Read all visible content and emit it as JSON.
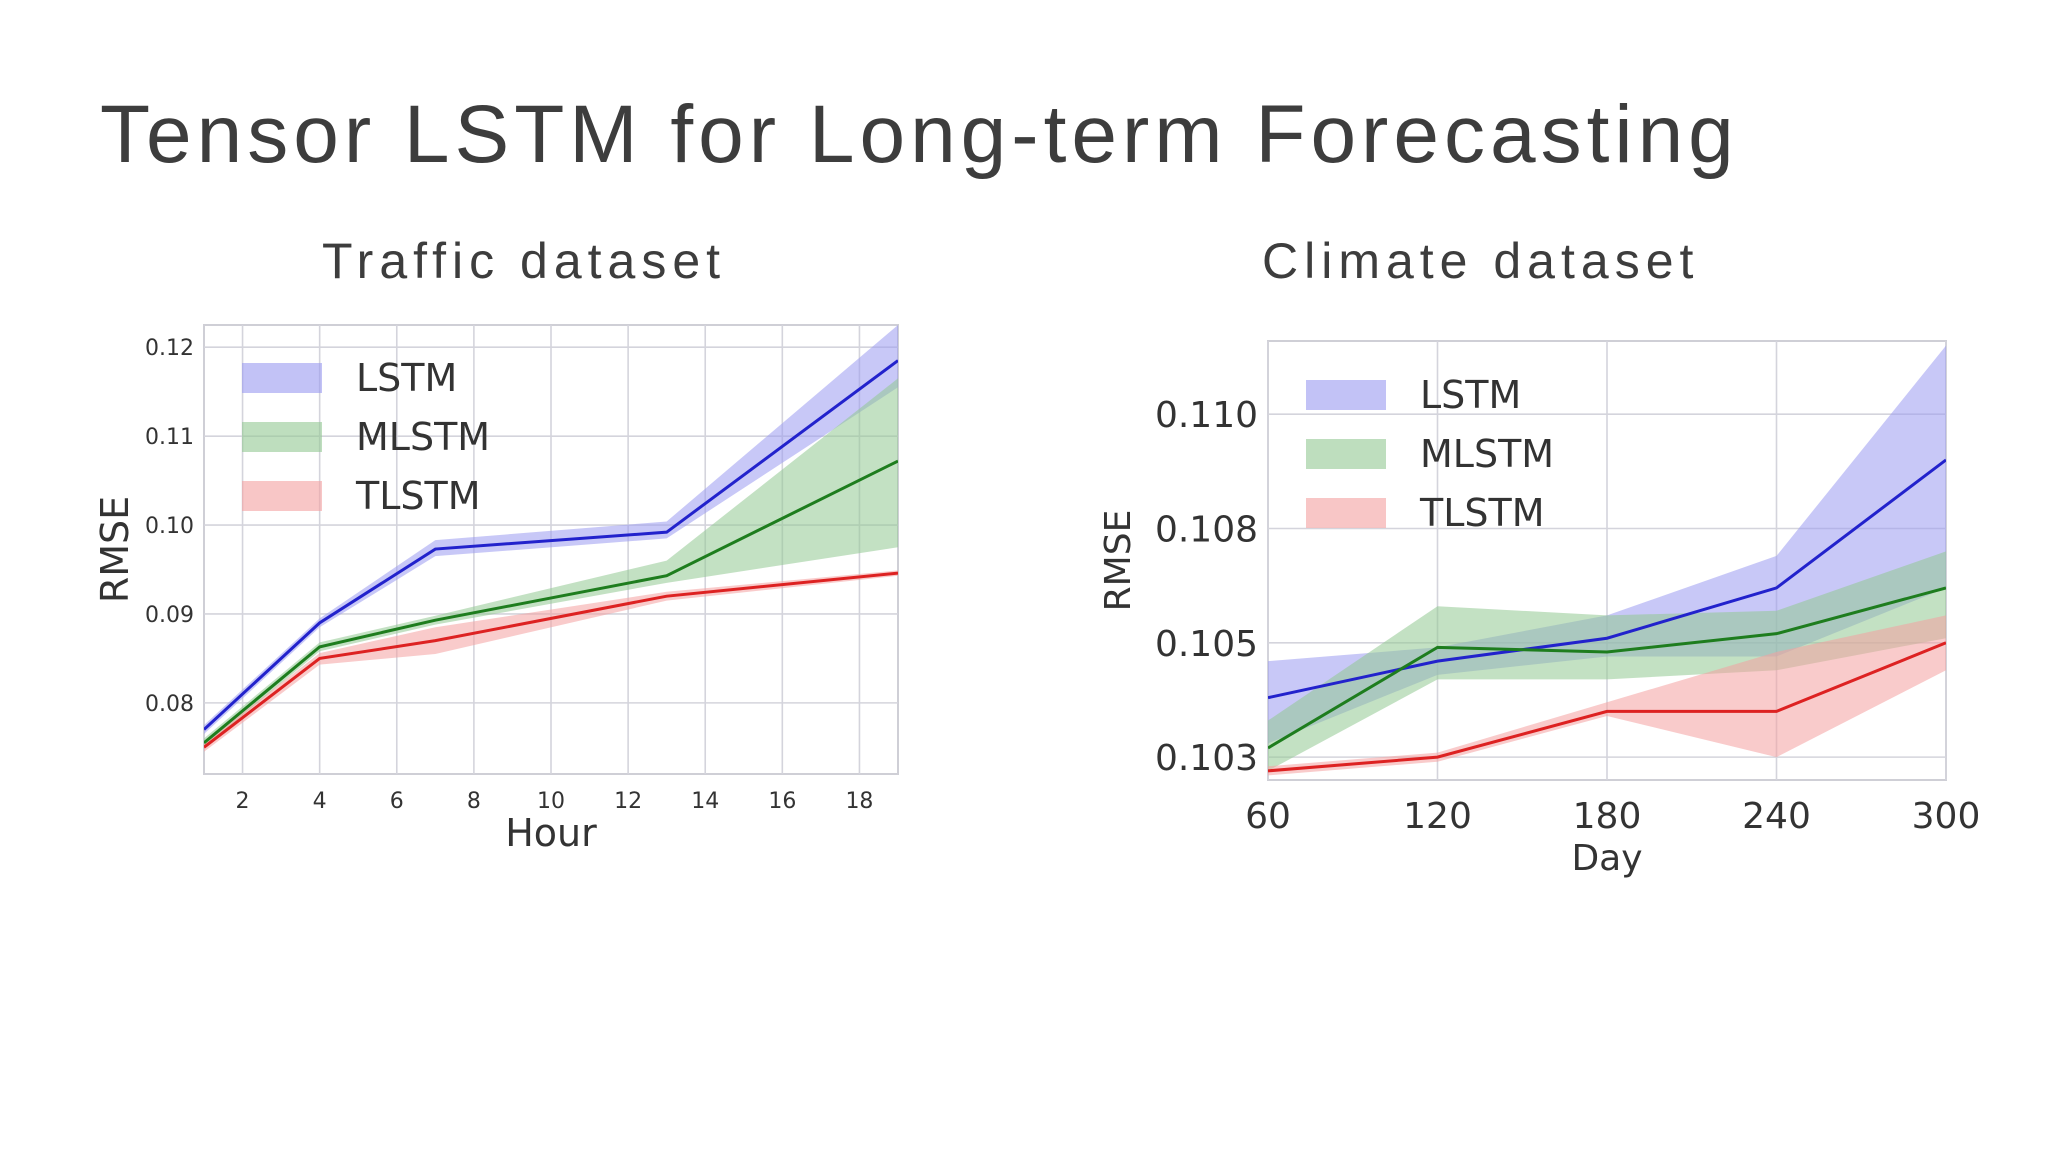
{
  "slide": {
    "title": "Tensor LSTM for Long-term Forecasting"
  },
  "chart_data": [
    {
      "type": "line",
      "title": "Traffic dataset",
      "xlabel": "Hour",
      "ylabel": "RMSE",
      "xlim": [
        1,
        19
      ],
      "ylim": [
        0.072,
        0.1225
      ],
      "xticks": [
        2,
        4,
        6,
        8,
        10,
        12,
        14,
        16,
        18
      ],
      "xtick_labels": [
        "2",
        "4",
        "6",
        "8",
        "10",
        "12",
        "14",
        "16",
        "18"
      ],
      "yticks": [
        0.08,
        0.09,
        0.1,
        0.11,
        0.12
      ],
      "ytick_labels": [
        "0.08",
        "0.09",
        "0.10",
        "0.11",
        "0.12"
      ],
      "grid": true,
      "legend": "top-left",
      "series": [
        {
          "name": "LSTM",
          "color": "#2222cc",
          "band_color": "#9a9af0",
          "x": [
            1,
            4,
            7,
            13,
            19
          ],
          "y": [
            0.077,
            0.089,
            0.0973,
            0.0992,
            0.1185
          ],
          "lower": [
            0.0765,
            0.0885,
            0.0965,
            0.0985,
            0.1155
          ],
          "upper": [
            0.0775,
            0.0895,
            0.0983,
            0.1004,
            0.1225
          ]
        },
        {
          "name": "MLSTM",
          "color": "#1e7d1e",
          "band_color": "#92c892",
          "x": [
            1,
            4,
            7,
            13,
            19
          ],
          "y": [
            0.0755,
            0.0863,
            0.0893,
            0.0943,
            0.1072
          ],
          "lower": [
            0.075,
            0.0858,
            0.0888,
            0.0935,
            0.0975
          ],
          "upper": [
            0.076,
            0.0868,
            0.0898,
            0.096,
            0.1165
          ]
        },
        {
          "name": "TLSTM",
          "color": "#dd2222",
          "band_color": "#f4a0a0",
          "x": [
            1,
            4,
            7,
            13,
            19
          ],
          "y": [
            0.075,
            0.085,
            0.087,
            0.092,
            0.0946
          ],
          "lower": [
            0.0745,
            0.0843,
            0.0855,
            0.0915,
            0.0943
          ],
          "upper": [
            0.0755,
            0.0856,
            0.0885,
            0.0925,
            0.0949
          ]
        }
      ]
    },
    {
      "type": "line",
      "title": "Climate dataset",
      "xlabel": "Day",
      "ylabel": "RMSE",
      "xlim": [
        60,
        300
      ],
      "ylim": [
        0.102,
        0.1116
      ],
      "xticks": [
        60,
        120,
        180,
        240,
        300
      ],
      "xtick_labels": [
        "60",
        "120",
        "180",
        "240",
        "300"
      ],
      "yticks": [
        0.1025,
        0.105,
        0.1075,
        0.11
      ],
      "ytick_labels": [
        "0.103",
        "0.105",
        "0.108",
        "0.110"
      ],
      "grid": true,
      "legend": "top-left",
      "series": [
        {
          "name": "LSTM",
          "color": "#2222cc",
          "band_color": "#9a9af0",
          "x": [
            60,
            120,
            180,
            240,
            300
          ],
          "y": [
            0.1038,
            0.1046,
            0.1051,
            0.1062,
            0.109
          ],
          "lower": [
            0.1028,
            0.1043,
            0.1047,
            0.1047,
            0.1062
          ],
          "upper": [
            0.1046,
            0.1049,
            0.1056,
            0.1069,
            0.1115
          ]
        },
        {
          "name": "MLSTM",
          "color": "#1e7d1e",
          "band_color": "#92c892",
          "x": [
            60,
            120,
            180,
            240,
            300
          ],
          "y": [
            0.1027,
            0.1049,
            0.1048,
            0.1052,
            0.1062
          ],
          "lower": [
            0.1022,
            0.1042,
            0.1042,
            0.1044,
            0.1051
          ],
          "upper": [
            0.1033,
            0.1058,
            0.1056,
            0.1057,
            0.107
          ]
        },
        {
          "name": "TLSTM",
          "color": "#dd2222",
          "band_color": "#f4a0a0",
          "x": [
            60,
            120,
            180,
            240,
            300
          ],
          "y": [
            0.1022,
            0.1025,
            0.1035,
            0.1035,
            0.105
          ],
          "lower": [
            0.1021,
            0.1024,
            0.1034,
            0.1025,
            0.1044
          ],
          "upper": [
            0.1023,
            0.1026,
            0.1037,
            0.1048,
            0.1056
          ]
        }
      ]
    }
  ]
}
